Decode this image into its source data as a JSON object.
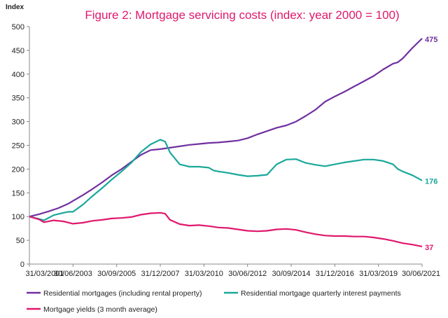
{
  "chart_data": {
    "type": "line",
    "title": "Figure 2: Mortgage servicing costs (index: year 2000 = 100)",
    "ylabel": "Index",
    "xlabel": "",
    "ylim": [
      0,
      500
    ],
    "yticks": [
      "0",
      "50",
      "100",
      "150",
      "200",
      "250",
      "300",
      "350",
      "400",
      "450",
      "500"
    ],
    "xlim": [
      2001.25,
      2021.5
    ],
    "xticks": [
      "31/03/2001",
      "30/06/2003",
      "30/09/2005",
      "31/12/2007",
      "31/03/2010",
      "30/06/2012",
      "30/09/2014",
      "31/12/2016",
      "31/03/2019",
      "30/06/2021"
    ],
    "grid": false,
    "legend_position": "bottom",
    "series": [
      {
        "name": "Residential mortgages (including rental property)",
        "color": "#7030a0",
        "end_label": "475",
        "x": [
          2001.25,
          2001.75,
          2002.25,
          2002.75,
          2003.25,
          2003.5,
          2004.0,
          2004.5,
          2005.0,
          2005.5,
          2006.0,
          2006.5,
          2007.0,
          2007.5,
          2008.0,
          2008.5,
          2009.0,
          2009.5,
          2010.0,
          2010.5,
          2011.0,
          2011.5,
          2012.0,
          2012.5,
          2013.0,
          2013.5,
          2014.0,
          2014.5,
          2015.0,
          2015.5,
          2016.0,
          2016.5,
          2017.0,
          2017.5,
          2018.0,
          2018.5,
          2019.0,
          2019.5,
          2020.0,
          2020.25,
          2020.5,
          2021.0,
          2021.5
        ],
        "values": [
          100,
          105,
          111,
          118,
          127,
          133,
          145,
          158,
          172,
          187,
          200,
          215,
          230,
          240,
          242,
          245,
          248,
          251,
          253,
          255,
          256,
          258,
          260,
          265,
          273,
          280,
          287,
          292,
          300,
          312,
          325,
          342,
          353,
          363,
          374,
          385,
          396,
          410,
          422,
          425,
          433,
          455,
          475
        ]
      },
      {
        "name": "Residential mortgage quarterly interest payments",
        "color": "#1aa89a",
        "end_label": "176",
        "x": [
          2001.25,
          2001.75,
          2002.0,
          2002.5,
          2003.0,
          2003.25,
          2003.5,
          2004.0,
          2004.5,
          2005.0,
          2005.5,
          2006.0,
          2006.5,
          2007.0,
          2007.5,
          2008.0,
          2008.25,
          2008.5,
          2009.0,
          2009.5,
          2010.0,
          2010.5,
          2010.75,
          2011.0,
          2011.5,
          2012.0,
          2012.5,
          2013.0,
          2013.5,
          2014.0,
          2014.5,
          2015.0,
          2015.5,
          2016.0,
          2016.5,
          2017.0,
          2017.5,
          2018.0,
          2018.5,
          2019.0,
          2019.5,
          2020.0,
          2020.25,
          2020.5,
          2021.0,
          2021.5
        ],
        "values": [
          100,
          95,
          92,
          103,
          108,
          110,
          110,
          125,
          143,
          160,
          178,
          195,
          213,
          236,
          252,
          262,
          258,
          235,
          210,
          205,
          205,
          203,
          197,
          195,
          192,
          188,
          185,
          186,
          188,
          210,
          220,
          221,
          213,
          209,
          206,
          210,
          214,
          217,
          220,
          220,
          217,
          210,
          200,
          195,
          187,
          176
        ]
      },
      {
        "name": "Mortgage yields (3 month average)",
        "color": "#e0186c",
        "end_label": "37",
        "x": [
          2001.25,
          2001.75,
          2002.0,
          2002.5,
          2003.0,
          2003.5,
          2004.0,
          2004.5,
          2005.0,
          2005.5,
          2006.0,
          2006.5,
          2007.0,
          2007.5,
          2008.0,
          2008.25,
          2008.5,
          2009.0,
          2009.5,
          2010.0,
          2010.5,
          2011.0,
          2011.5,
          2012.0,
          2012.5,
          2013.0,
          2013.5,
          2014.0,
          2014.5,
          2015.0,
          2015.5,
          2016.0,
          2016.5,
          2017.0,
          2017.5,
          2018.0,
          2018.5,
          2019.0,
          2019.5,
          2020.0,
          2020.5,
          2021.0,
          2021.5
        ],
        "values": [
          100,
          94,
          88,
          92,
          90,
          85,
          87,
          91,
          93,
          96,
          97,
          99,
          104,
          107,
          108,
          106,
          93,
          84,
          81,
          82,
          80,
          77,
          76,
          73,
          70,
          69,
          70,
          73,
          74,
          72,
          67,
          63,
          60,
          59,
          59,
          58,
          58,
          56,
          53,
          49,
          44,
          41,
          37
        ]
      }
    ]
  }
}
